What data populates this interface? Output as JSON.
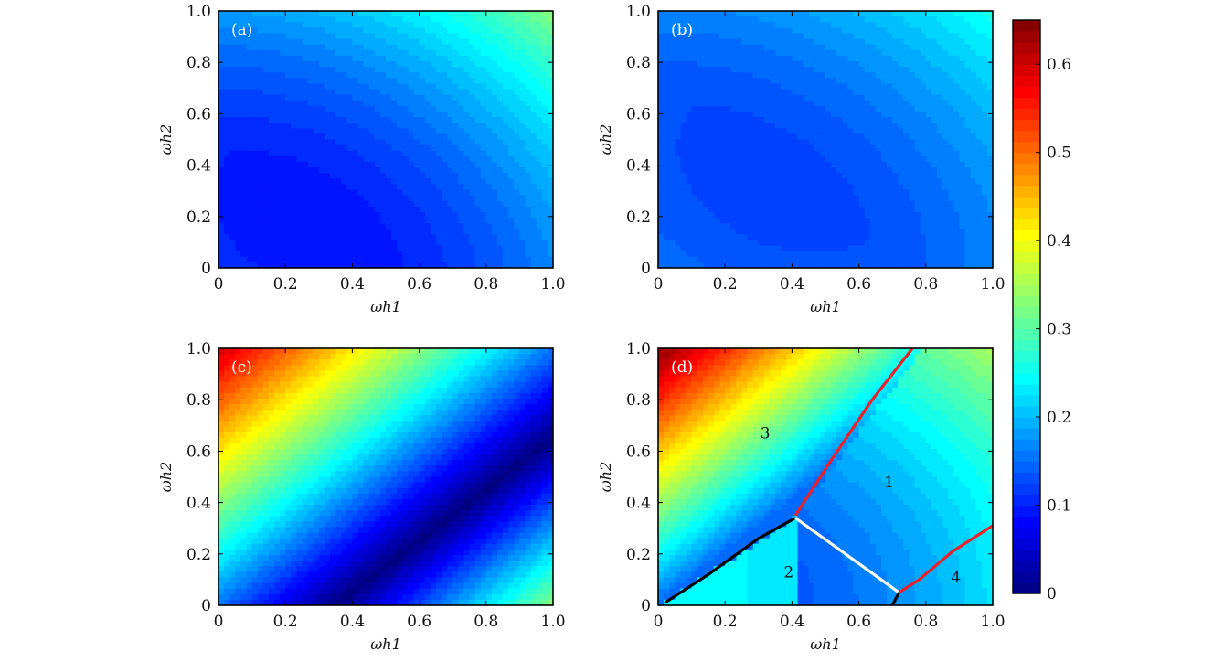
{
  "colors": {
    "line_red": "#e8232a",
    "line_black": "#000000",
    "line_white": "#ffffff"
  },
  "chart_data": [
    {
      "type": "heatmap",
      "panel_label": "(a)",
      "xlabel": "ωh1",
      "ylabel": "ωh2",
      "xlim": [
        0,
        1.0
      ],
      "ylim": [
        0,
        1.0
      ],
      "x_ticks": [
        "0",
        "0.2",
        "0.4",
        "0.6",
        "0.8",
        "1.0"
      ],
      "y_ticks": [
        "0",
        "0.2",
        "0.4",
        "0.6",
        "0.8",
        "1.0"
      ],
      "surface": {
        "min_at": [
          0.3,
          0.2
        ],
        "min_value": 0.09,
        "a": 0.13,
        "b": 0.12,
        "c": 0.07
      }
    },
    {
      "type": "heatmap",
      "panel_label": "(b)",
      "xlabel": "ωh1",
      "ylabel": "ωh2",
      "xlim": [
        0,
        1.0
      ],
      "ylim": [
        0,
        1.0
      ],
      "x_ticks": [
        "0",
        "0.2",
        "0.4",
        "0.6",
        "0.8",
        "1.0"
      ],
      "y_ticks": [
        "0",
        "0.2",
        "0.4",
        "0.6",
        "0.8",
        "1.0"
      ],
      "surface": {
        "min_at": [
          0.38,
          0.38
        ],
        "min_value": 0.12,
        "a": 0.09,
        "b": 0.09,
        "c": 0.05
      }
    },
    {
      "type": "heatmap",
      "panel_label": "(c)",
      "xlabel": "ωh1",
      "ylabel": "ωh2",
      "xlim": [
        0,
        1.0
      ],
      "ylim": [
        0,
        1.0
      ],
      "x_ticks": [
        "0",
        "0.2",
        "0.4",
        "0.6",
        "0.8",
        "1.0"
      ],
      "y_ticks": [
        "0",
        "0.2",
        "0.4",
        "0.6",
        "0.8",
        "1.0"
      ],
      "surface": {
        "kind": "diagonal_valley",
        "corner_max": 0.6,
        "far_corner": 0.33,
        "valley_min": 0.0
      }
    },
    {
      "type": "heatmap",
      "panel_label": "(d)",
      "xlabel": "ωh1",
      "ylabel": "ωh2",
      "xlim": [
        0,
        1.0
      ],
      "ylim": [
        0,
        1.0
      ],
      "x_ticks": [
        "0",
        "0.2",
        "0.4",
        "0.6",
        "0.8",
        "1.0"
      ],
      "y_ticks": [
        "0",
        "0.2",
        "0.4",
        "0.6",
        "0.8",
        "1.0"
      ],
      "regions": [
        {
          "label": "1",
          "at": [
            0.69,
            0.48
          ]
        },
        {
          "label": "2",
          "at": [
            0.39,
            0.13
          ]
        },
        {
          "label": "3",
          "at": [
            0.32,
            0.67
          ]
        },
        {
          "label": "4",
          "at": [
            0.89,
            0.11
          ]
        }
      ],
      "boundaries": [
        {
          "color": "red",
          "points": [
            [
              0.41,
              0.35
            ],
            [
              0.52,
              0.57
            ],
            [
              0.64,
              0.8
            ],
            [
              0.76,
              1.0
            ]
          ]
        },
        {
          "color": "black",
          "points": [
            [
              0.02,
              0.01
            ],
            [
              0.15,
              0.12
            ],
            [
              0.3,
              0.26
            ],
            [
              0.41,
              0.34
            ]
          ]
        },
        {
          "color": "white",
          "points": [
            [
              0.41,
              0.34
            ],
            [
              0.72,
              0.05
            ]
          ]
        },
        {
          "color": "black",
          "points": [
            [
              0.7,
              0.0
            ],
            [
              0.72,
              0.05
            ]
          ]
        },
        {
          "color": "red",
          "points": [
            [
              0.72,
              0.05
            ],
            [
              0.78,
              0.1
            ],
            [
              0.88,
              0.21
            ],
            [
              1.0,
              0.31
            ]
          ]
        }
      ]
    }
  ],
  "colorbar": {
    "range": [
      0,
      0.65
    ],
    "ticks": [
      "0",
      "0.1",
      "0.2",
      "0.3",
      "0.4",
      "0.5",
      "0.6"
    ],
    "tick_values": [
      0,
      0.1,
      0.2,
      0.3,
      0.4,
      0.5,
      0.6
    ],
    "colormap": "jet"
  }
}
